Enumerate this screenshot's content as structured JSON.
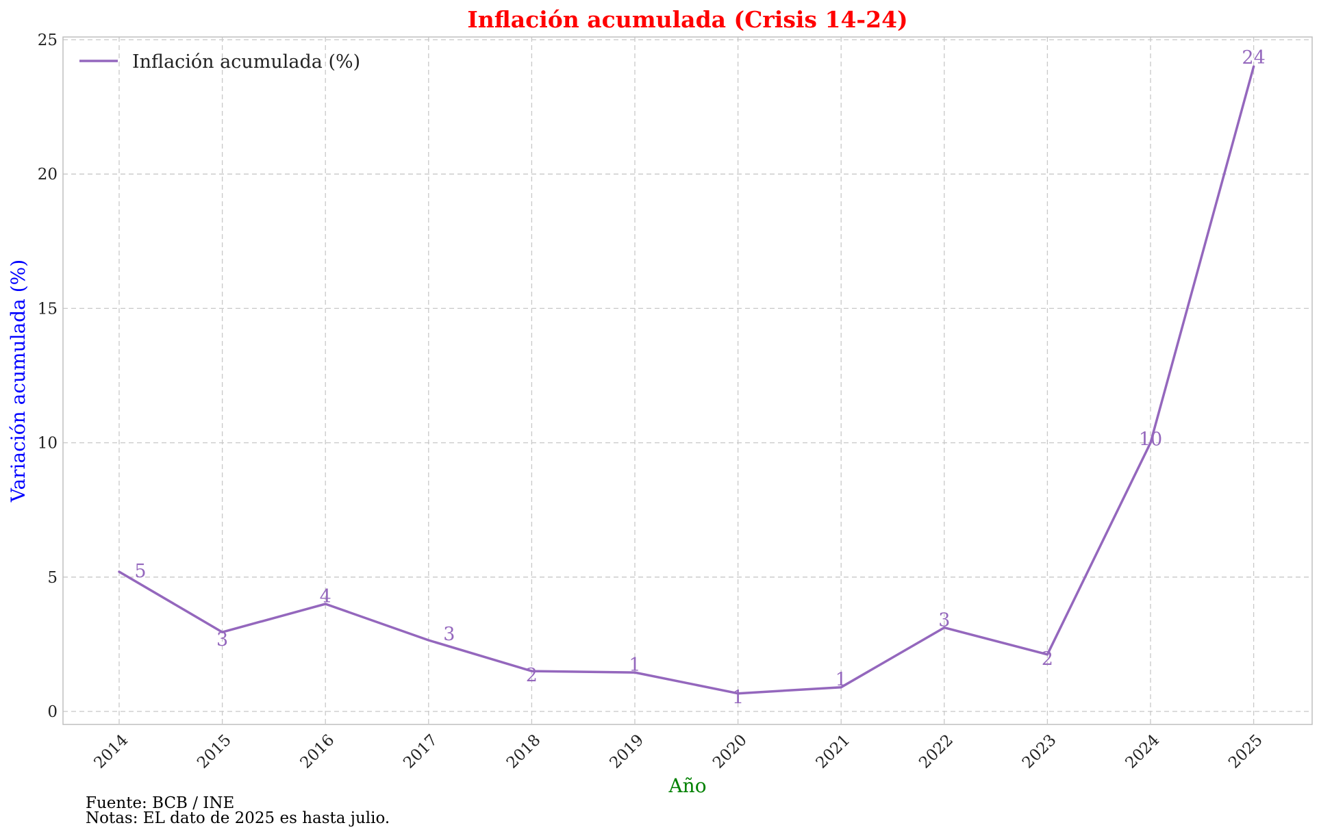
{
  "chart_data": {
    "type": "line",
    "title": "Inflación acumulada (Crisis 14-24)",
    "xlabel": "Año",
    "ylabel": "Variación acumulada (%)",
    "categories": [
      "2014",
      "2015",
      "2016",
      "2017",
      "2018",
      "2019",
      "2020",
      "2021",
      "2022",
      "2023",
      "2024",
      "2025"
    ],
    "series": [
      {
        "name": "Inflación acumulada (%)",
        "values": [
          5.2,
          2.95,
          4.0,
          2.65,
          1.5,
          1.45,
          0.67,
          0.9,
          3.12,
          2.12,
          10.0,
          24.0
        ],
        "labels": [
          "5",
          "3",
          "4",
          "3",
          "2",
          "1",
          "1",
          "1",
          "3",
          "2",
          "10",
          "24"
        ]
      }
    ],
    "ylim": [
      -0.5,
      25
    ],
    "yticks": [
      0,
      5,
      10,
      15,
      20,
      25
    ],
    "grid": true,
    "legend_position": "top-left",
    "colors": {
      "series": "#9467bd",
      "title": "#ff0000",
      "xlabel": "#008000",
      "ylabel": "#0000ff",
      "grid": "#c8c8c8",
      "frame": "#bfbfbf"
    },
    "footnotes": {
      "source": "Fuente: BCB / INE",
      "notes": "Notas: EL dato de 2025 es hasta julio."
    }
  }
}
